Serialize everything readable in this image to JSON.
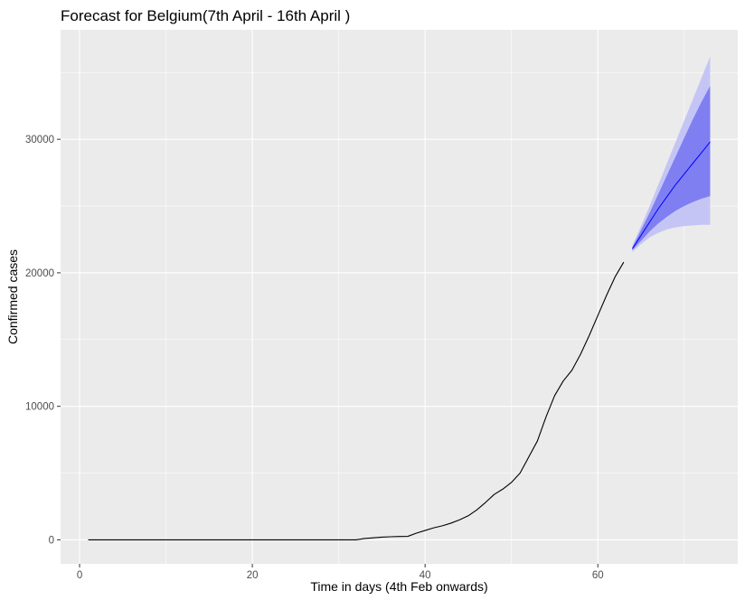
{
  "chart_data": {
    "type": "line",
    "title": "Forecast for Belgium(7th April - 16th April )",
    "xlabel": "Time in days (4th Feb onwards)",
    "ylabel": "Confirmed cases",
    "xlim": [
      -2.2,
      76.2
    ],
    "ylim": [
      -1800,
      38200
    ],
    "x_ticks": [
      0,
      20,
      40,
      60
    ],
    "y_ticks": [
      0,
      10000,
      20000,
      30000
    ],
    "x_tick_labels": [
      "0",
      "20",
      "40",
      "60"
    ],
    "y_tick_labels": [
      "0",
      "10000",
      "20000",
      "30000"
    ],
    "grid": true,
    "colors": {
      "panel": "#ebebeb",
      "grid": "#ffffff",
      "observed_line": "#000000",
      "forecast_line": "#0000ff",
      "band_80": "#7f7ff2",
      "band_95": "#c5c5f5"
    },
    "observed": {
      "x": [
        1,
        5,
        10,
        15,
        20,
        25,
        30,
        31,
        32,
        33,
        34,
        35,
        36,
        37,
        38,
        39,
        40,
        41,
        42,
        43,
        44,
        45,
        46,
        47,
        48,
        49,
        50,
        51,
        52,
        53,
        54,
        55,
        56,
        57,
        58,
        59,
        60,
        61,
        62,
        63
      ],
      "y": [
        0,
        0,
        0,
        0,
        0,
        0,
        0,
        0,
        0,
        100,
        150,
        200,
        230,
        250,
        260,
        500,
        700,
        900,
        1050,
        1250,
        1500,
        1800,
        2250,
        2800,
        3400,
        3800,
        4300,
        5000,
        6200,
        7400,
        9200,
        10800,
        11900,
        12700,
        13900,
        15300,
        16800,
        18300,
        19700,
        20800
      ]
    },
    "forecast": {
      "x": [
        64,
        65,
        66,
        67,
        68,
        69,
        70,
        71,
        72,
        73
      ],
      "mean": [
        21800,
        22800,
        23800,
        24800,
        25700,
        26600,
        27400,
        28200,
        29000,
        29800
      ],
      "lo80": [
        21700,
        22400,
        23100,
        23700,
        24200,
        24650,
        25000,
        25300,
        25550,
        25750
      ],
      "hi80": [
        21900,
        23200,
        24500,
        25900,
        27300,
        28700,
        30100,
        31500,
        32800,
        34000
      ],
      "lo95": [
        21550,
        22150,
        22650,
        23000,
        23250,
        23400,
        23500,
        23550,
        23600,
        23600
      ],
      "hi95": [
        22050,
        23500,
        25000,
        26600,
        28200,
        29800,
        31400,
        33000,
        34600,
        36200
      ]
    }
  }
}
